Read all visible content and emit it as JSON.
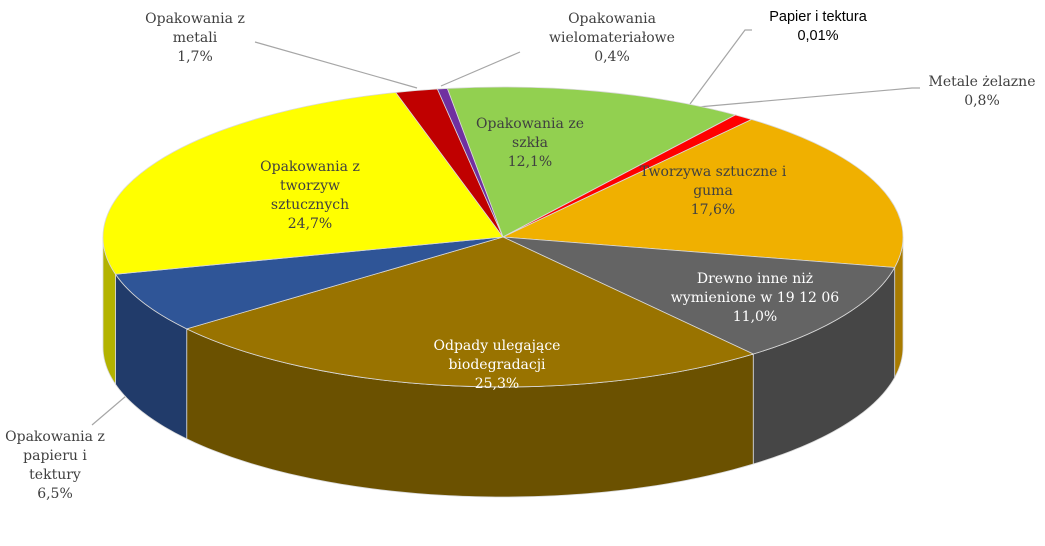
{
  "chart_data": {
    "type": "pie3d",
    "categories": [
      "Opakowania ze szkła",
      "Papier i tektura",
      "Metale żelazne",
      "Tworzywa sztuczne i guma",
      "Drewno inne niż wymienione w 19 12 06",
      "Odpady ulegające biodegradacji",
      "Opakowania z papieru i tektury",
      "Opakowania z tworzyw sztucznych",
      "Opakowania z metali",
      "Opakowania wielomateriałowe"
    ],
    "values": [
      12.1,
      0.01,
      0.8,
      17.6,
      11.0,
      25.3,
      6.5,
      24.7,
      1.7,
      0.4
    ],
    "value_labels": [
      "12,1%",
      "0,01%",
      "0,8%",
      "17,6%",
      "11,0%",
      "25,3%",
      "6,5%",
      "24,7%",
      "1,7%",
      "0,4%"
    ],
    "colors": [
      "#92d050",
      "#c00000",
      "#ff0000",
      "#f0b000",
      "#646464",
      "#997300",
      "#2f5597",
      "#ffff00",
      "#c00000",
      "#7030a0"
    ]
  }
}
